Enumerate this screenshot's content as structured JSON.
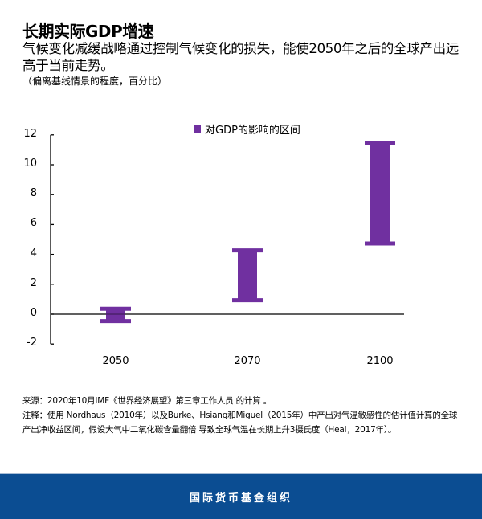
{
  "header": {
    "title": "长期实际GDP增速",
    "subtitle": "气候变化减缓战略通过控制气候变化的损失，能使2050年之后的全球产出远高于当前走势。",
    "unit": "（偏离基线情景的程度，百分比）"
  },
  "chart_data": {
    "type": "bar",
    "subtype": "floating-range",
    "title": "长期实际GDP增速",
    "xlabel": "",
    "ylabel": "偏离基线情景的程度，百分比",
    "categories": [
      "2050",
      "2070",
      "2100"
    ],
    "series": [
      {
        "name": "对GDP的影响的区间",
        "color": "#7030a0",
        "low": [
          -0.6,
          0.8,
          4.6
        ],
        "high": [
          0.5,
          4.4,
          11.6
        ]
      }
    ],
    "ylim": [
      -2,
      12
    ],
    "yticks": [
      -2,
      0,
      2,
      4,
      6,
      8,
      10,
      12
    ],
    "grid": false,
    "legend_position": "top"
  },
  "legend": {
    "label": "对GDP的影响的区间",
    "color": "#7030a0"
  },
  "notes": {
    "source": "来源：2020年10月IMF《世界经济展望》第三章工作人员 的计算 。",
    "note": "注释：使用 Nordhaus（2010年）以及Burke、Hsiang和Miguel（2015年）中产出对气温敏感性的估计值计算的全球产出净收益区间，假设大气中二氧化碳含量翻倍 导致全球气温在长期上升3摄氏度（Heal，2017年）。"
  },
  "footer": {
    "org": "国际货币基金组织",
    "background": "#0b4d92"
  }
}
